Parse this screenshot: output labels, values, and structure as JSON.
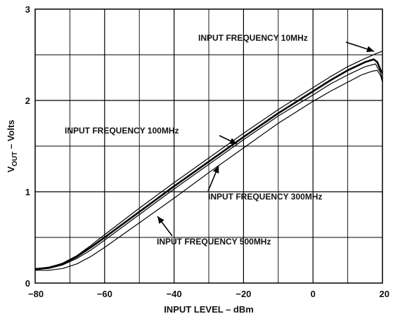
{
  "chart_data": {
    "type": "line",
    "xlabel": "INPUT LEVEL – dBm",
    "ylabel": {
      "main": "V",
      "sub": "OUT",
      "rest": " – Volts"
    },
    "xlim": [
      -80,
      20
    ],
    "ylim": [
      0,
      3
    ],
    "x_ticks": [
      -80,
      -60,
      -40,
      -20,
      0,
      20
    ],
    "y_ticks": [
      0,
      1,
      2,
      3
    ],
    "x_tick_labels": [
      "−80",
      "−60",
      "−40",
      "−20",
      "0",
      "20"
    ],
    "y_tick_labels": [
      "0",
      "1",
      "2",
      "3"
    ],
    "x_grid_step": 10,
    "y_grid_step": 0.5,
    "grid": true,
    "series": [
      {
        "name": "INPUT FREQUENCY 10MHz",
        "stroke_width": 1.2,
        "points": [
          [
            -80,
            0.16
          ],
          [
            -76,
            0.17
          ],
          [
            -72,
            0.22
          ],
          [
            -68,
            0.3
          ],
          [
            -64,
            0.41
          ],
          [
            -60,
            0.53
          ],
          [
            -50,
            0.82
          ],
          [
            -40,
            1.1
          ],
          [
            -30,
            1.37
          ],
          [
            -20,
            1.64
          ],
          [
            -10,
            1.9
          ],
          [
            0,
            2.14
          ],
          [
            5,
            2.26
          ],
          [
            10,
            2.37
          ],
          [
            15,
            2.46
          ],
          [
            18,
            2.51
          ],
          [
            20,
            2.54
          ]
        ]
      },
      {
        "name": "INPUT FREQUENCY 100MHz",
        "stroke_width": 2.6,
        "points": [
          [
            -80,
            0.15
          ],
          [
            -76,
            0.17
          ],
          [
            -72,
            0.21
          ],
          [
            -68,
            0.29
          ],
          [
            -64,
            0.39
          ],
          [
            -60,
            0.5
          ],
          [
            -50,
            0.78
          ],
          [
            -40,
            1.06
          ],
          [
            -30,
            1.33
          ],
          [
            -20,
            1.6
          ],
          [
            -10,
            1.86
          ],
          [
            0,
            2.1
          ],
          [
            5,
            2.22
          ],
          [
            10,
            2.33
          ],
          [
            15,
            2.42
          ],
          [
            17.5,
            2.45
          ],
          [
            18.5,
            2.42
          ],
          [
            19.5,
            2.33
          ],
          [
            20,
            2.3
          ]
        ]
      },
      {
        "name": "INPUT FREQUENCY 300MHz",
        "stroke_width": 1.2,
        "points": [
          [
            -80,
            0.15
          ],
          [
            -76,
            0.16
          ],
          [
            -72,
            0.2
          ],
          [
            -68,
            0.27
          ],
          [
            -64,
            0.36
          ],
          [
            -60,
            0.47
          ],
          [
            -50,
            0.75
          ],
          [
            -40,
            1.03
          ],
          [
            -30,
            1.3
          ],
          [
            -20,
            1.57
          ],
          [
            -10,
            1.83
          ],
          [
            0,
            2.06
          ],
          [
            5,
            2.18
          ],
          [
            10,
            2.28
          ],
          [
            15,
            2.37
          ],
          [
            18,
            2.4
          ],
          [
            19.5,
            2.3
          ],
          [
            20,
            2.22
          ]
        ]
      },
      {
        "name": "INPUT FREQUENCY 500MHz",
        "stroke_width": 1.2,
        "points": [
          [
            -80,
            0.14
          ],
          [
            -76,
            0.14
          ],
          [
            -72,
            0.16
          ],
          [
            -68,
            0.21
          ],
          [
            -64,
            0.29
          ],
          [
            -60,
            0.39
          ],
          [
            -50,
            0.66
          ],
          [
            -40,
            0.93
          ],
          [
            -30,
            1.21
          ],
          [
            -20,
            1.48
          ],
          [
            -10,
            1.75
          ],
          [
            0,
            1.99
          ],
          [
            5,
            2.1
          ],
          [
            10,
            2.2
          ],
          [
            14,
            2.28
          ],
          [
            17,
            2.32
          ],
          [
            18.5,
            2.33
          ],
          [
            19.5,
            2.27
          ],
          [
            20,
            2.2
          ]
        ]
      }
    ],
    "annotations": [
      {
        "text": "INPUT FREQUENCY 10MHz",
        "series": 0
      },
      {
        "text": "INPUT FREQUENCY 100MHz",
        "series": 1
      },
      {
        "text": "INPUT FREQUENCY 300MHz",
        "series": 2
      },
      {
        "text": "INPUT FREQUENCY 500MHz",
        "series": 3
      }
    ]
  }
}
